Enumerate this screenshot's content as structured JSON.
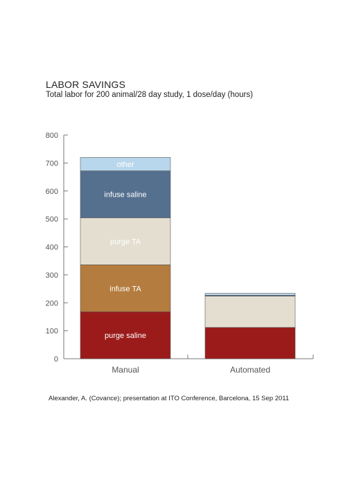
{
  "chart_data": {
    "type": "bar",
    "stacked": true,
    "title": "LABOR SAVINGS",
    "subtitle": "Total labor for 200 animal/28 day study, 1 dose/day (hours)",
    "categories": [
      "Manual",
      "Automated"
    ],
    "yticks": [
      0,
      100,
      200,
      300,
      400,
      500,
      600,
      700,
      800
    ],
    "ylim": [
      0,
      800
    ],
    "series": [
      {
        "name": "purge saline",
        "color": "#9b1b1b",
        "values": [
          168,
          112
        ]
      },
      {
        "name": "infuse TA",
        "color": "#b47c3e",
        "values": [
          168,
          0
        ]
      },
      {
        "name": "purge TA",
        "color": "#e3ded0",
        "values": [
          168,
          112
        ]
      },
      {
        "name": "infuse saline",
        "color": "#55708f",
        "values": [
          168,
          3
        ]
      },
      {
        "name": "other",
        "color": "#b9d7ec",
        "values": [
          48,
          7
        ]
      }
    ],
    "source": "Alexander, A.  (Covance); presentation at ITO Conference, Barcelona, 15 Sep 2011"
  }
}
